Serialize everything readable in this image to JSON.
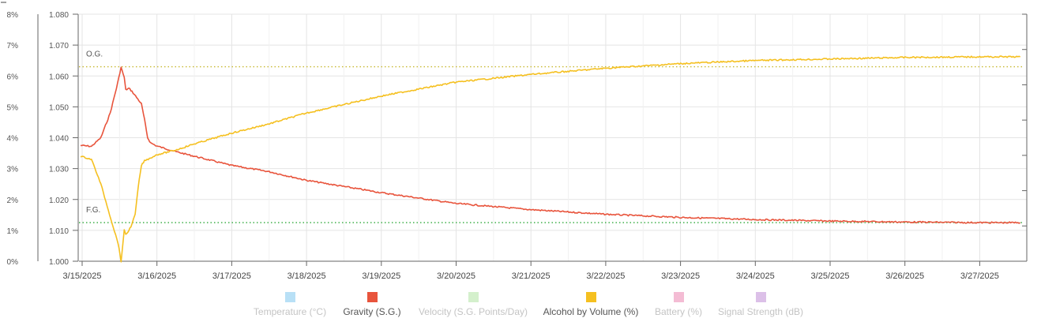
{
  "chart_data": {
    "type": "line",
    "title": "",
    "x_ticks": [
      "3/15/2025",
      "3/16/2025",
      "3/17/2025",
      "3/18/2025",
      "3/19/2025",
      "3/20/2025",
      "3/21/2025",
      "3/22/2025",
      "3/23/2025",
      "3/24/2025",
      "3/25/2025",
      "3/26/2025",
      "3/27/2025"
    ],
    "xlim": [
      "3/15/2025 00:00",
      "3/27/2025 14:00"
    ],
    "y_left_alcohol": {
      "ticks": [
        "0%",
        "1%",
        "2%",
        "3%",
        "4%",
        "5%",
        "6%",
        "7%",
        "8%"
      ],
      "range": [
        0,
        8
      ]
    },
    "y_left_gravity": {
      "ticks": [
        "1.000",
        "1.010",
        "1.020",
        "1.030",
        "1.040",
        "1.050",
        "1.060",
        "1.070",
        "1.080"
      ],
      "range": [
        1.0,
        1.08
      ]
    },
    "reference_lines": [
      {
        "label": "O.G.",
        "value": 1.063,
        "color": "#c8b830"
      },
      {
        "label": "F.G.",
        "value": 1.0125,
        "color": "#2ea83a"
      }
    ],
    "series": [
      {
        "name": "Gravity (S.G.)",
        "color": "#e8543c",
        "points": [
          [
            "3/14/2025 23:30",
            1.0375
          ],
          [
            "3/15/2025 03:00",
            1.0372
          ],
          [
            "3/15/2025 06:00",
            1.04
          ],
          [
            "3/15/2025 09:00",
            1.048
          ],
          [
            "3/15/2025 11:00",
            1.056
          ],
          [
            "3/15/2025 12:30",
            1.0628
          ],
          [
            "3/15/2025 13:30",
            1.0595
          ],
          [
            "3/15/2025 14:00",
            1.0555
          ],
          [
            "3/15/2025 15:00",
            1.056
          ],
          [
            "3/15/2025 16:00",
            1.055
          ],
          [
            "3/15/2025 17:30",
            1.053
          ],
          [
            "3/15/2025 19:00",
            1.051
          ],
          [
            "3/15/2025 20:00",
            1.046
          ],
          [
            "3/15/2025 21:00",
            1.04
          ],
          [
            "3/15/2025 22:00",
            1.0383
          ],
          [
            "3/16/2025 00:00",
            1.0373
          ],
          [
            "3/16/2025 06:00",
            1.0355
          ],
          [
            "3/16/2025 12:00",
            1.034
          ],
          [
            "3/17/2025 00:00",
            1.031
          ],
          [
            "3/17/2025 12:00",
            1.029
          ],
          [
            "3/18/2025 00:00",
            1.0262
          ],
          [
            "3/19/2025 00:00",
            1.0222
          ],
          [
            "3/20/2025 00:00",
            1.0187
          ],
          [
            "3/21/2025 00:00",
            1.0167
          ],
          [
            "3/22/2025 00:00",
            1.0152
          ],
          [
            "3/23/2025 00:00",
            1.0142
          ],
          [
            "3/24/2025 00:00",
            1.0135
          ],
          [
            "3/25/2025 00:00",
            1.013
          ],
          [
            "3/26/2025 00:00",
            1.0127
          ],
          [
            "3/27/2025 00:00",
            1.0125
          ],
          [
            "3/27/2025 13:00",
            1.0125
          ]
        ]
      },
      {
        "name": "Alcohol by Volume (%)",
        "color": "#f5c020",
        "points": [
          [
            "3/14/2025 23:30",
            3.4
          ],
          [
            "3/15/2025 03:00",
            3.3
          ],
          [
            "3/15/2025 06:00",
            2.5
          ],
          [
            "3/15/2025 08:00",
            1.8
          ],
          [
            "3/15/2025 10:00",
            1.1
          ],
          [
            "3/15/2025 11:30",
            0.6
          ],
          [
            "3/15/2025 12:30",
            0.0
          ],
          [
            "3/15/2025 13:00",
            0.5
          ],
          [
            "3/15/2025 13:30",
            1.0
          ],
          [
            "3/15/2025 14:00",
            0.85
          ],
          [
            "3/15/2025 15:00",
            1.0
          ],
          [
            "3/15/2025 16:00",
            1.2
          ],
          [
            "3/15/2025 16:30",
            1.4
          ],
          [
            "3/15/2025 17:00",
            1.5
          ],
          [
            "3/15/2025 18:00",
            2.4
          ],
          [
            "3/15/2025 19:00",
            3.1
          ],
          [
            "3/15/2025 20:00",
            3.25
          ],
          [
            "3/15/2025 22:00",
            3.35
          ],
          [
            "3/16/2025 00:00",
            3.45
          ],
          [
            "3/16/2025 06:00",
            3.6
          ],
          [
            "3/16/2025 12:00",
            3.8
          ],
          [
            "3/17/2025 00:00",
            4.15
          ],
          [
            "3/17/2025 12:00",
            4.45
          ],
          [
            "3/18/2025 00:00",
            4.8
          ],
          [
            "3/19/2025 00:00",
            5.35
          ],
          [
            "3/20/2025 00:00",
            5.8
          ],
          [
            "3/21/2025 00:00",
            6.05
          ],
          [
            "3/22/2025 00:00",
            6.25
          ],
          [
            "3/23/2025 00:00",
            6.4
          ],
          [
            "3/24/2025 00:00",
            6.5
          ],
          [
            "3/25/2025 00:00",
            6.55
          ],
          [
            "3/26/2025 00:00",
            6.6
          ],
          [
            "3/27/2025 00:00",
            6.62
          ],
          [
            "3/27/2025 13:00",
            6.62
          ]
        ]
      }
    ],
    "legend": {
      "placement": "bottom",
      "items": [
        {
          "label": "Temperature (°C)",
          "color": "#b8e0f6",
          "active": false
        },
        {
          "label": "Gravity (S.G.)",
          "color": "#e8543c",
          "active": true
        },
        {
          "label": "Velocity (S.G. Points/Day)",
          "color": "#d4f0cc",
          "active": false
        },
        {
          "label": "Alcohol by Volume (%)",
          "color": "#f5c020",
          "active": true
        },
        {
          "label": "Battery (%)",
          "color": "#f4bcd4",
          "active": false
        },
        {
          "label": "Signal Strength (dB)",
          "color": "#dcc0e8",
          "active": false
        }
      ]
    },
    "grid": true
  }
}
